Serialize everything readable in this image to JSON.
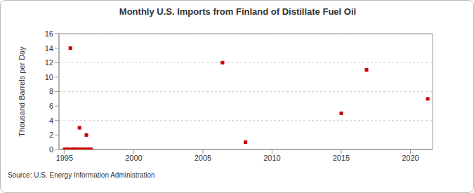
{
  "chart_data": {
    "type": "scatter",
    "title": "Monthly U.S. Imports from Finland of Distillate Fuel Oil",
    "y_label": "Thousand Barrels per Day",
    "source": "Source: U.S. Energy Information Administration",
    "x": [
      1995,
      1995.08,
      1995.17,
      1995.25,
      1995.33,
      1995.42,
      1995.5,
      1995.58,
      1995.67,
      1995.75,
      1995.83,
      1995.92,
      1996,
      1996.08,
      1996.17,
      1996.25,
      1996.33,
      1996.42,
      1996.5,
      1996.58,
      1996.67,
      1996.75,
      1996.83,
      1996.92,
      2006.42,
      2008.08,
      2015,
      2016.83,
      2021.25
    ],
    "values": [
      0,
      0,
      0,
      0,
      0,
      14,
      0,
      0,
      0,
      0,
      0,
      0,
      0,
      3,
      0,
      0,
      0,
      0,
      0,
      2,
      0,
      0,
      0,
      0,
      12,
      1,
      5,
      11,
      7
    ],
    "color": "#cc0000",
    "marker": "square",
    "xlim": [
      1994.6,
      2021.6
    ],
    "xticks": [
      1995,
      2000,
      2005,
      2010,
      2015,
      2020
    ],
    "ylim": [
      0,
      16
    ],
    "yticks": [
      0,
      2,
      4,
      6,
      8,
      10,
      12,
      14,
      16
    ],
    "grid": true
  }
}
